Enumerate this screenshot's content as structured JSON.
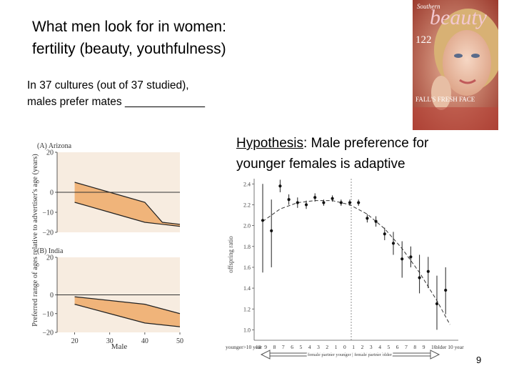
{
  "slide": {
    "title_line1": "What men look for in women:",
    "title_line2": "fertility (beauty, youthfulness)",
    "subtitle_line1": "In 37 cultures (out of 37 studied),",
    "subtitle_line2": "males prefer mates _____________",
    "hypothesis_label": "Hypothesis",
    "hypothesis_line1": ":  Male preference for",
    "hypothesis_line2": "younger females is adaptive",
    "slide_number": "9"
  },
  "magazine": {
    "masthead_small": "Southern",
    "masthead": "beauty",
    "issue_number": "122",
    "cover_line": "FALL'S FRESH FACE"
  },
  "chart_data": [
    {
      "type": "area",
      "panel_label": "(A)  Arizona",
      "ylabel": "Preferred range of ages relative to advertiser's age (years)",
      "xlabel": "Male",
      "x_ticks": [
        20,
        30,
        40,
        50
      ],
      "y_ticks": [
        20,
        0,
        -10,
        -20
      ],
      "y_tick_labels": [
        "20",
        "0",
        "−10",
        "−20"
      ],
      "ylim": [
        -20,
        20
      ],
      "xlim": [
        15,
        50
      ],
      "x": [
        20,
        30,
        40,
        45,
        50
      ],
      "upper": [
        5,
        0,
        -5,
        -15,
        -16
      ],
      "lower": [
        -5,
        -10,
        -15,
        -16,
        -17
      ]
    },
    {
      "type": "area",
      "panel_label": "(B)  India",
      "ylabel": "Preferred range of ages relative to advertiser's age (years)",
      "xlabel": "Male",
      "x_ticks": [
        20,
        30,
        40,
        50
      ],
      "x_tick_labels": [
        "20",
        "30",
        "40",
        "50"
      ],
      "y_ticks": [
        20,
        0,
        -10,
        -20
      ],
      "y_tick_labels": [
        "20",
        "0",
        "−10",
        "−20"
      ],
      "ylim": [
        -20,
        20
      ],
      "xlim": [
        15,
        50
      ],
      "x": [
        20,
        30,
        40,
        50
      ],
      "upper": [
        -1,
        -3,
        -5,
        -10
      ],
      "lower": [
        -5,
        -10,
        -15,
        -17
      ]
    },
    {
      "type": "scatter",
      "ylabel": "offspring ratio",
      "y_ticks": [
        2.4,
        2.2,
        2.0,
        1.8,
        1.6,
        1.4,
        1.2,
        1.0
      ],
      "y_tick_labels": [
        "2.4",
        "2.2",
        "2.0",
        "1.8",
        "1.6",
        "1.4",
        "1.2",
        "1.0"
      ],
      "ylim": [
        0.9,
        2.45
      ],
      "x_tick_labels": [
        "younger>10 year",
        "10",
        "9",
        "8",
        "7",
        "6",
        "5",
        "4",
        "3",
        "2",
        "1",
        "0",
        "1",
        "2",
        "3",
        "4",
        "5",
        "6",
        "7",
        "8",
        "9",
        "10",
        "older 10 year"
      ],
      "arrow_label": "female partner younger | female partner older",
      "points": [
        {
          "x": 0,
          "y": 2.05,
          "lo": 1.55,
          "hi": 2.4
        },
        {
          "x": 1,
          "y": 1.95,
          "lo": 1.6,
          "hi": 2.25
        },
        {
          "x": 2,
          "y": 2.38,
          "lo": 2.32,
          "hi": 2.44
        },
        {
          "x": 3,
          "y": 2.25,
          "lo": 2.2,
          "hi": 2.3
        },
        {
          "x": 4,
          "y": 2.22,
          "lo": 2.17,
          "hi": 2.27
        },
        {
          "x": 5,
          "y": 2.2,
          "lo": 2.16,
          "hi": 2.24
        },
        {
          "x": 6,
          "y": 2.27,
          "lo": 2.23,
          "hi": 2.31
        },
        {
          "x": 7,
          "y": 2.22,
          "lo": 2.19,
          "hi": 2.25
        },
        {
          "x": 8,
          "y": 2.26,
          "lo": 2.23,
          "hi": 2.29
        },
        {
          "x": 9,
          "y": 2.22,
          "lo": 2.19,
          "hi": 2.25
        },
        {
          "x": 10,
          "y": 2.22,
          "lo": 2.19,
          "hi": 2.25
        },
        {
          "x": 11,
          "y": 2.22,
          "lo": 2.19,
          "hi": 2.25
        },
        {
          "x": 12,
          "y": 2.07,
          "lo": 2.03,
          "hi": 2.11
        },
        {
          "x": 13,
          "y": 2.04,
          "lo": 1.99,
          "hi": 2.09
        },
        {
          "x": 14,
          "y": 1.92,
          "lo": 1.86,
          "hi": 1.98
        },
        {
          "x": 15,
          "y": 1.83,
          "lo": 1.72,
          "hi": 1.94
        },
        {
          "x": 16,
          "y": 1.68,
          "lo": 1.5,
          "hi": 1.85
        },
        {
          "x": 17,
          "y": 1.7,
          "lo": 1.6,
          "hi": 1.8
        },
        {
          "x": 18,
          "y": 1.5,
          "lo": 1.35,
          "hi": 1.72
        },
        {
          "x": 19,
          "y": 1.56,
          "lo": 1.4,
          "hi": 1.7
        },
        {
          "x": 20,
          "y": 1.25,
          "lo": 1.0,
          "hi": 1.52
        },
        {
          "x": 21,
          "y": 1.38,
          "lo": 1.15,
          "hi": 1.6
        }
      ],
      "curve": [
        {
          "x": 0,
          "y": 2.04
        },
        {
          "x": 2,
          "y": 2.16
        },
        {
          "x": 4,
          "y": 2.22
        },
        {
          "x": 6,
          "y": 2.24
        },
        {
          "x": 8,
          "y": 2.24
        },
        {
          "x": 10,
          "y": 2.2
        },
        {
          "x": 12,
          "y": 2.11
        },
        {
          "x": 14,
          "y": 1.97
        },
        {
          "x": 16,
          "y": 1.78
        },
        {
          "x": 18,
          "y": 1.55
        },
        {
          "x": 20,
          "y": 1.28
        },
        {
          "x": 21.5,
          "y": 1.05
        }
      ]
    }
  ]
}
